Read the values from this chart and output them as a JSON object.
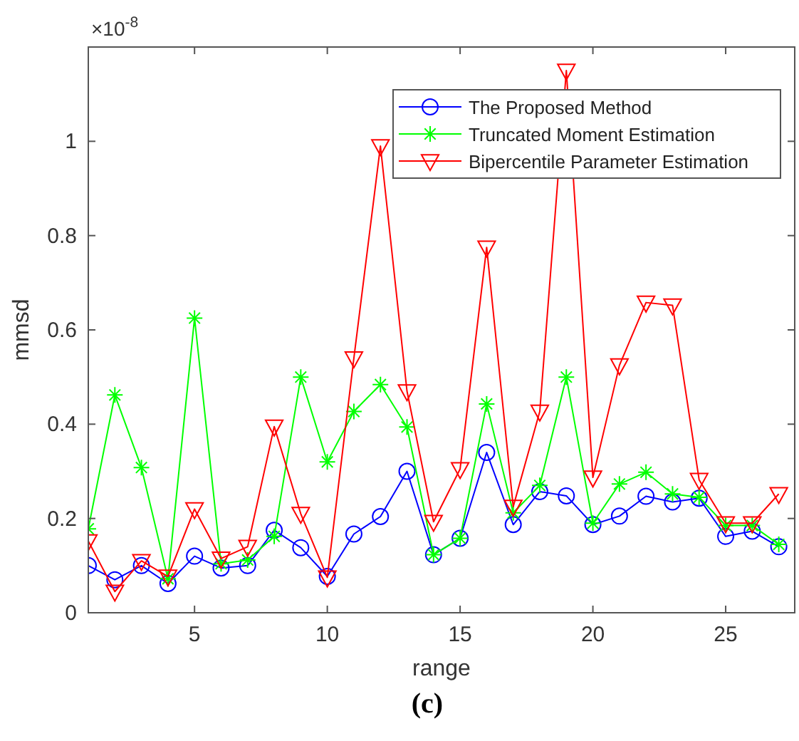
{
  "chart_data": {
    "type": "line",
    "xlabel": "range",
    "ylabel": "mmsd",
    "x": [
      1,
      2,
      3,
      4,
      5,
      6,
      7,
      8,
      9,
      10,
      11,
      12,
      13,
      14,
      15,
      16,
      17,
      18,
      19,
      20,
      21,
      22,
      23,
      24,
      25,
      26,
      27
    ],
    "xlim": [
      1,
      27.6
    ],
    "xticks": [
      5,
      10,
      15,
      20,
      25
    ],
    "ylim": [
      0,
      1.2
    ],
    "yticks": [
      0,
      0.2,
      0.4,
      0.6,
      0.8,
      1
    ],
    "grid": false,
    "legend": "top right",
    "series": [
      {
        "name": "The Proposed Method",
        "color": "#0000ff",
        "marker": "circle",
        "values": [
          0.1,
          0.07,
          0.1,
          0.062,
          0.12,
          0.095,
          0.1,
          0.175,
          0.138,
          0.077,
          0.167,
          0.204,
          0.3,
          0.123,
          0.158,
          0.34,
          0.187,
          0.257,
          0.248,
          0.187,
          0.205,
          0.247,
          0.235,
          0.243,
          0.162,
          0.173,
          0.14
        ]
      },
      {
        "name": "Truncated Moment Estimation",
        "color": "#00ff00",
        "marker": "cross",
        "values": [
          0.178,
          0.462,
          0.308,
          0.072,
          0.625,
          0.104,
          0.112,
          0.162,
          0.5,
          0.32,
          0.427,
          0.484,
          0.394,
          0.123,
          0.158,
          0.443,
          0.212,
          0.27,
          0.5,
          0.19,
          0.273,
          0.298,
          0.252,
          0.245,
          0.185,
          0.185,
          0.145
        ]
      },
      {
        "name": "Bipercentile Parameter Estimation",
        "color": "#ff0000",
        "marker": "triangle",
        "values": [
          0.152,
          0.045,
          0.11,
          0.077,
          0.22,
          0.115,
          0.14,
          0.395,
          0.21,
          0.075,
          0.54,
          0.99,
          0.47,
          0.193,
          0.305,
          0.775,
          0.225,
          0.427,
          1.15,
          0.287,
          0.525,
          0.658,
          0.652,
          0.282,
          0.19,
          0.19,
          0.252
        ]
      }
    ],
    "annotations": [
      "×10$^{-8}$",
      "(c)"
    ]
  }
}
